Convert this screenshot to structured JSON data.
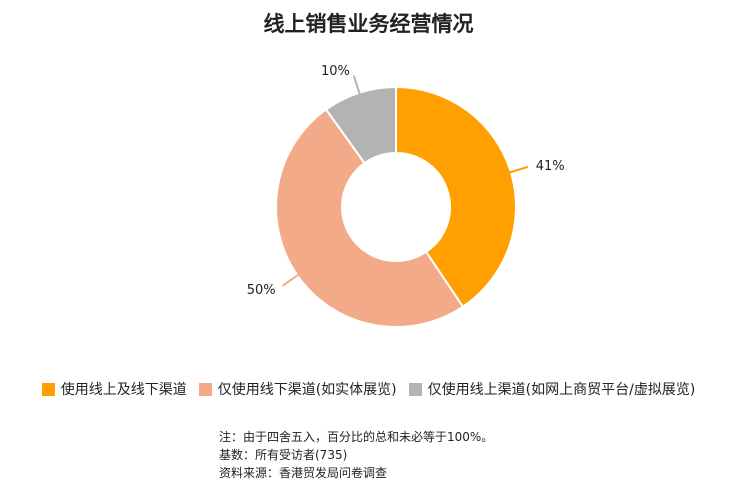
{
  "chart_data": {
    "type": "pie",
    "variant": "donut",
    "title": "线上销售业务经营情况",
    "categories": [
      "使用线上及线下渠道",
      "仅使用线下渠道(如实体展览)",
      "仅使用线上渠道(如网上商贸平台/虚拟展览)"
    ],
    "values": [
      41,
      50,
      10
    ],
    "value_labels": [
      "41%",
      "50%",
      "10%"
    ],
    "colors": [
      "#ff9f00",
      "#f2aa88",
      "#b3b3b3"
    ],
    "legend_position": "bottom"
  },
  "notes": [
    "注：由于四舍五入，百分比的总和未必等于100%。",
    "基数：所有受访者(735)",
    "资料来源：香港贸发局问卷调查"
  ]
}
